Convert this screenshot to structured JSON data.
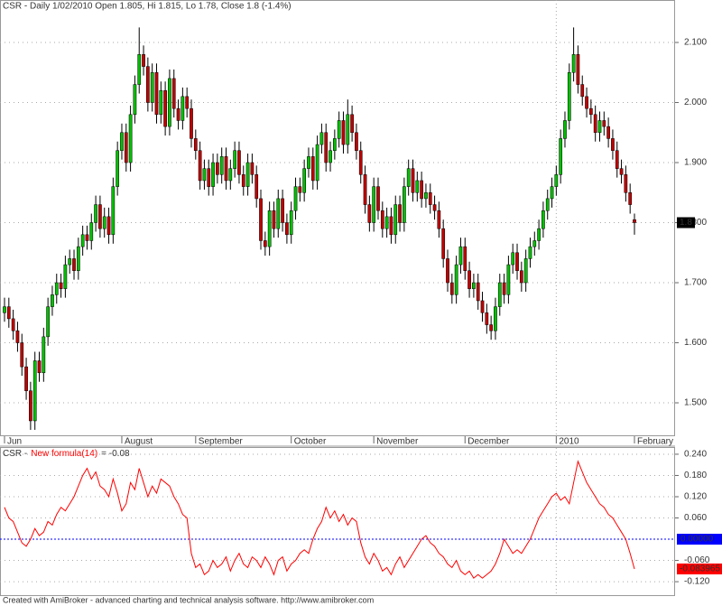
{
  "chart_data": [
    {
      "type": "candlestick",
      "title": "CSR - Daily 1/02/2010 Open 1.805, Hi 1.815, Lo 1.78, Close 1.8 (-1.4%)",
      "up_color": "#00c000",
      "down_color": "#c00000",
      "ylim": [
        1.4444,
        2.1707
      ],
      "yticks": [
        {
          "value": 1.5,
          "label": "1.500"
        },
        {
          "value": 1.6,
          "label": "1.600"
        },
        {
          "value": 1.7,
          "label": "1.700"
        },
        {
          "value": 1.8,
          "label": "1.800"
        },
        {
          "value": 1.9,
          "label": "1.900"
        },
        {
          "value": 2.0,
          "label": "2.000"
        },
        {
          "value": 2.1,
          "label": "2.100"
        }
      ],
      "grid": true,
      "xticks": [
        {
          "value": 0,
          "label": "Jun"
        },
        {
          "value": 27,
          "label": "August"
        },
        {
          "value": 44,
          "label": "September"
        },
        {
          "value": 66,
          "label": "October"
        },
        {
          "value": 85,
          "label": "November"
        },
        {
          "value": 106,
          "label": "December"
        },
        {
          "value": 127,
          "label": "2010"
        },
        {
          "value": 145,
          "label": "February"
        }
      ],
      "last_label": {
        "value": 1.8,
        "label": "1.8"
      },
      "open": [
        1.65,
        1.66,
        1.64,
        1.62,
        1.6,
        1.56,
        1.52,
        1.47,
        1.57,
        1.55,
        1.61,
        1.66,
        1.68,
        1.7,
        1.69,
        1.73,
        1.74,
        1.72,
        1.76,
        1.78,
        1.77,
        1.8,
        1.83,
        1.79,
        1.81,
        1.78,
        1.86,
        1.92,
        1.95,
        1.9,
        1.98,
        2.03,
        2.08,
        2.06,
        2.0,
        2.05,
        1.98,
        2.02,
        1.96,
        2.04,
        1.99,
        1.97,
        2.01,
        1.99,
        1.94,
        1.92,
        1.87,
        1.89,
        1.86,
        1.9,
        1.88,
        1.91,
        1.87,
        1.89,
        1.92,
        1.88,
        1.86,
        1.9,
        1.88,
        1.84,
        1.77,
        1.76,
        1.82,
        1.79,
        1.84,
        1.8,
        1.78,
        1.82,
        1.86,
        1.85,
        1.89,
        1.91,
        1.87,
        1.93,
        1.95,
        1.9,
        1.92,
        1.94,
        1.97,
        1.93,
        1.98,
        1.95,
        1.92,
        1.88,
        1.83,
        1.8,
        1.86,
        1.82,
        1.79,
        1.81,
        1.78,
        1.83,
        1.8,
        1.86,
        1.89,
        1.85,
        1.87,
        1.84,
        1.85,
        1.83,
        1.82,
        1.79,
        1.74,
        1.7,
        1.68,
        1.73,
        1.76,
        1.72,
        1.69,
        1.7,
        1.67,
        1.65,
        1.63,
        1.62,
        1.66,
        1.7,
        1.68,
        1.73,
        1.75,
        1.72,
        1.7,
        1.74,
        1.76,
        1.77,
        1.79,
        1.82,
        1.84,
        1.86,
        1.88,
        1.94,
        1.97,
        2.05,
        2.08,
        2.03,
        2.01,
        1.99,
        1.98,
        1.95,
        1.97,
        1.96,
        1.94,
        1.92,
        1.89,
        1.88,
        1.85,
        1.805
      ],
      "high": [
        1.675,
        1.675,
        1.655,
        1.635,
        1.615,
        1.575,
        1.535,
        1.585,
        1.585,
        1.625,
        1.675,
        1.695,
        1.715,
        1.715,
        1.745,
        1.755,
        1.755,
        1.775,
        1.795,
        1.795,
        1.815,
        1.845,
        1.845,
        1.825,
        1.825,
        1.875,
        1.935,
        1.965,
        1.965,
        1.995,
        2.045,
        2.125,
        2.095,
        2.075,
        2.065,
        2.065,
        2.035,
        2.035,
        2.055,
        2.055,
        2.005,
        2.025,
        2.025,
        2.005,
        1.955,
        1.935,
        1.905,
        1.905,
        1.915,
        1.915,
        1.925,
        1.925,
        1.905,
        1.935,
        1.935,
        1.895,
        1.915,
        1.915,
        1.895,
        1.855,
        1.785,
        1.835,
        1.835,
        1.855,
        1.855,
        1.815,
        1.835,
        1.875,
        1.875,
        1.905,
        1.925,
        1.925,
        1.945,
        1.965,
        1.965,
        1.935,
        1.955,
        1.985,
        1.985,
        2.005,
        1.995,
        1.965,
        1.935,
        1.895,
        1.845,
        1.875,
        1.875,
        1.835,
        1.825,
        1.825,
        1.845,
        1.845,
        1.875,
        1.905,
        1.905,
        1.885,
        1.885,
        1.865,
        1.865,
        1.845,
        1.835,
        1.805,
        1.755,
        1.715,
        1.745,
        1.775,
        1.775,
        1.735,
        1.715,
        1.715,
        1.685,
        1.665,
        1.645,
        1.675,
        1.715,
        1.715,
        1.745,
        1.765,
        1.765,
        1.735,
        1.755,
        1.775,
        1.785,
        1.805,
        1.835,
        1.855,
        1.875,
        1.895,
        1.955,
        1.985,
        2.065,
        2.125,
        2.095,
        2.045,
        2.025,
        2.005,
        1.995,
        1.985,
        1.985,
        1.975,
        1.955,
        1.935,
        1.905,
        1.895,
        1.865,
        1.815
      ],
      "low": [
        1.635,
        1.625,
        1.605,
        1.585,
        1.545,
        1.505,
        1.455,
        1.455,
        1.535,
        1.535,
        1.595,
        1.645,
        1.665,
        1.675,
        1.675,
        1.715,
        1.705,
        1.705,
        1.745,
        1.755,
        1.755,
        1.785,
        1.775,
        1.775,
        1.765,
        1.765,
        1.845,
        1.905,
        1.885,
        1.885,
        1.965,
        2.015,
        2.045,
        1.985,
        1.985,
        1.965,
        1.965,
        1.945,
        1.945,
        1.975,
        1.955,
        1.955,
        1.975,
        1.925,
        1.905,
        1.855,
        1.855,
        1.845,
        1.845,
        1.865,
        1.865,
        1.855,
        1.855,
        1.875,
        1.865,
        1.845,
        1.845,
        1.865,
        1.825,
        1.755,
        1.745,
        1.745,
        1.775,
        1.775,
        1.785,
        1.765,
        1.765,
        1.805,
        1.835,
        1.835,
        1.875,
        1.855,
        1.855,
        1.915,
        1.885,
        1.885,
        1.905,
        1.925,
        1.915,
        1.915,
        1.935,
        1.905,
        1.865,
        1.815,
        1.785,
        1.785,
        1.805,
        1.775,
        1.775,
        1.765,
        1.765,
        1.785,
        1.785,
        1.845,
        1.835,
        1.835,
        1.825,
        1.825,
        1.815,
        1.805,
        1.775,
        1.725,
        1.685,
        1.665,
        1.665,
        1.715,
        1.705,
        1.675,
        1.675,
        1.655,
        1.635,
        1.615,
        1.605,
        1.605,
        1.645,
        1.665,
        1.665,
        1.715,
        1.705,
        1.685,
        1.685,
        1.725,
        1.745,
        1.755,
        1.775,
        1.805,
        1.825,
        1.845,
        1.865,
        1.925,
        1.955,
        2.035,
        2.015,
        1.995,
        1.975,
        1.965,
        1.935,
        1.935,
        1.945,
        1.925,
        1.905,
        1.875,
        1.865,
        1.835,
        1.815,
        1.78
      ],
      "close": [
        1.66,
        1.64,
        1.62,
        1.6,
        1.56,
        1.52,
        1.47,
        1.57,
        1.55,
        1.61,
        1.66,
        1.68,
        1.7,
        1.69,
        1.73,
        1.74,
        1.72,
        1.76,
        1.78,
        1.77,
        1.8,
        1.83,
        1.79,
        1.81,
        1.78,
        1.86,
        1.92,
        1.95,
        1.9,
        1.98,
        2.03,
        2.08,
        2.06,
        2.0,
        2.05,
        1.98,
        2.02,
        1.96,
        2.04,
        1.99,
        1.97,
        2.01,
        1.99,
        1.94,
        1.92,
        1.87,
        1.89,
        1.86,
        1.9,
        1.88,
        1.91,
        1.87,
        1.89,
        1.92,
        1.88,
        1.86,
        1.9,
        1.88,
        1.84,
        1.77,
        1.76,
        1.82,
        1.79,
        1.84,
        1.8,
        1.78,
        1.82,
        1.86,
        1.85,
        1.89,
        1.91,
        1.87,
        1.93,
        1.95,
        1.9,
        1.92,
        1.94,
        1.97,
        1.93,
        1.98,
        1.95,
        1.92,
        1.88,
        1.83,
        1.8,
        1.86,
        1.82,
        1.79,
        1.81,
        1.78,
        1.83,
        1.8,
        1.86,
        1.89,
        1.85,
        1.87,
        1.84,
        1.85,
        1.83,
        1.82,
        1.79,
        1.74,
        1.7,
        1.68,
        1.73,
        1.76,
        1.72,
        1.69,
        1.7,
        1.67,
        1.65,
        1.63,
        1.62,
        1.66,
        1.7,
        1.68,
        1.73,
        1.75,
        1.72,
        1.7,
        1.74,
        1.76,
        1.77,
        1.79,
        1.82,
        1.84,
        1.86,
        1.88,
        1.94,
        1.97,
        2.05,
        2.08,
        2.03,
        2.01,
        1.99,
        1.98,
        1.95,
        1.97,
        1.96,
        1.94,
        1.92,
        1.89,
        1.88,
        1.85,
        1.83,
        1.8
      ]
    },
    {
      "type": "line",
      "title_parts": [
        "CSR -",
        "New formula(14)",
        "= -0.08"
      ],
      "color": "#ff0000",
      "ylim": [
        -0.1606,
        0.2577
      ],
      "yticks": [
        {
          "value": -0.12,
          "label": "-0.120"
        },
        {
          "value": -0.06,
          "label": "-0.060"
        },
        {
          "value": 0.06,
          "label": "0.060"
        },
        {
          "value": 0.12,
          "label": "0.120"
        },
        {
          "value": 0.18,
          "label": "0.180"
        },
        {
          "value": 0.24,
          "label": "0.240"
        }
      ],
      "grid": true,
      "reference_line": {
        "value": 0,
        "label": "0.00000",
        "color": "#0000ff"
      },
      "last_label": {
        "value": -0.083965,
        "label": "-0.083965"
      },
      "values": [
        0.09,
        0.06,
        0.05,
        0.02,
        -0.01,
        -0.02,
        0.0,
        0.03,
        0.01,
        0.02,
        0.05,
        0.04,
        0.07,
        0.09,
        0.08,
        0.1,
        0.12,
        0.15,
        0.18,
        0.2,
        0.17,
        0.19,
        0.15,
        0.14,
        0.12,
        0.17,
        0.13,
        0.08,
        0.1,
        0.16,
        0.14,
        0.2,
        0.16,
        0.12,
        0.15,
        0.13,
        0.17,
        0.16,
        0.15,
        0.12,
        0.1,
        0.07,
        0.06,
        -0.04,
        -0.08,
        -0.07,
        -0.1,
        -0.09,
        -0.06,
        -0.08,
        -0.07,
        -0.05,
        -0.09,
        -0.06,
        -0.04,
        -0.07,
        -0.08,
        -0.05,
        -0.06,
        -0.08,
        -0.05,
        -0.07,
        -0.1,
        -0.06,
        -0.05,
        -0.09,
        -0.07,
        -0.06,
        -0.04,
        -0.03,
        -0.04,
        0.0,
        0.03,
        0.05,
        0.09,
        0.06,
        0.08,
        0.05,
        0.07,
        0.04,
        0.06,
        0.05,
        -0.01,
        -0.05,
        -0.07,
        -0.04,
        -0.06,
        -0.09,
        -0.08,
        -0.1,
        -0.07,
        -0.05,
        -0.08,
        -0.06,
        -0.04,
        -0.02,
        0.0,
        0.01,
        -0.01,
        -0.02,
        -0.04,
        -0.05,
        -0.07,
        -0.08,
        -0.06,
        -0.09,
        -0.1,
        -0.09,
        -0.11,
        -0.1,
        -0.11,
        -0.1,
        -0.09,
        -0.07,
        -0.04,
        0.0,
        -0.02,
        -0.04,
        -0.03,
        -0.04,
        -0.02,
        0.0,
        0.03,
        0.06,
        0.08,
        0.1,
        0.12,
        0.13,
        0.11,
        0.12,
        0.1,
        0.16,
        0.22,
        0.19,
        0.16,
        0.14,
        0.12,
        0.1,
        0.09,
        0.07,
        0.06,
        0.04,
        0.02,
        0.0,
        -0.04,
        -0.083965
      ]
    }
  ],
  "footer": "Created with AmiBroker - advanced charting and technical analysis software. http://www.amibroker.com"
}
